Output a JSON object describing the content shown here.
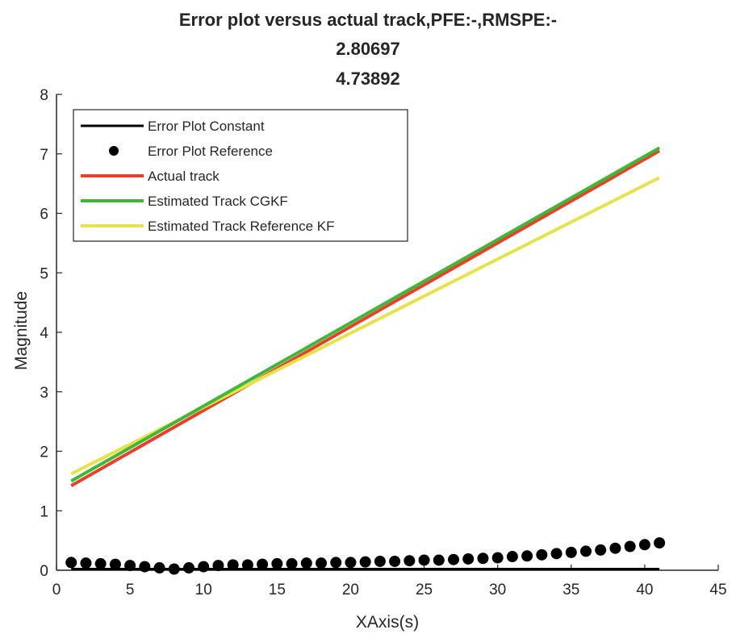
{
  "chart_data": {
    "type": "line",
    "title_lines": [
      "Error plot versus actual track,PFE:-,RMSPE:-",
      "2.80697",
      "4.73892"
    ],
    "xlabel": "XAxis(s)",
    "ylabel": "Magnitude",
    "xlim": [
      0,
      45
    ],
    "ylim": [
      0,
      8
    ],
    "xticks": [
      0,
      5,
      10,
      15,
      20,
      25,
      30,
      35,
      40,
      45
    ],
    "yticks": [
      0,
      1,
      2,
      3,
      4,
      5,
      6,
      7,
      8
    ],
    "legend_position": "top-left",
    "grid": false,
    "series": [
      {
        "name": "Error Plot Constant",
        "style": "line",
        "color": "#000000",
        "x": [
          1,
          41
        ],
        "y": [
          0.02,
          0.02
        ]
      },
      {
        "name": "Error Plot Reference",
        "style": "markers",
        "color": "#000000",
        "x": [
          1,
          2,
          3,
          4,
          5,
          6,
          7,
          8,
          9,
          10,
          11,
          12,
          13,
          14,
          15,
          16,
          17,
          18,
          19,
          20,
          21,
          22,
          23,
          24,
          25,
          26,
          27,
          28,
          29,
          30,
          31,
          32,
          33,
          34,
          35,
          36,
          37,
          38,
          39,
          40,
          41
        ],
        "y": [
          0.13,
          0.12,
          0.11,
          0.1,
          0.08,
          0.06,
          0.04,
          0.02,
          0.04,
          0.06,
          0.08,
          0.09,
          0.09,
          0.1,
          0.11,
          0.11,
          0.12,
          0.12,
          0.13,
          0.13,
          0.14,
          0.15,
          0.15,
          0.16,
          0.17,
          0.17,
          0.18,
          0.19,
          0.2,
          0.21,
          0.23,
          0.24,
          0.26,
          0.28,
          0.3,
          0.32,
          0.34,
          0.37,
          0.4,
          0.43,
          0.46
        ]
      },
      {
        "name": "Actual track",
        "style": "line",
        "color": "#e8402b",
        "x": [
          1,
          41
        ],
        "y": [
          1.42,
          7.05
        ]
      },
      {
        "name": "Estimated Track CGKF",
        "style": "line",
        "color": "#3fb83a",
        "x": [
          1,
          41
        ],
        "y": [
          1.5,
          7.1
        ]
      },
      {
        "name": "Estimated Track Reference KF",
        "style": "line",
        "color": "#e6e34a",
        "x": [
          1,
          41
        ],
        "y": [
          1.62,
          6.6
        ]
      }
    ]
  }
}
